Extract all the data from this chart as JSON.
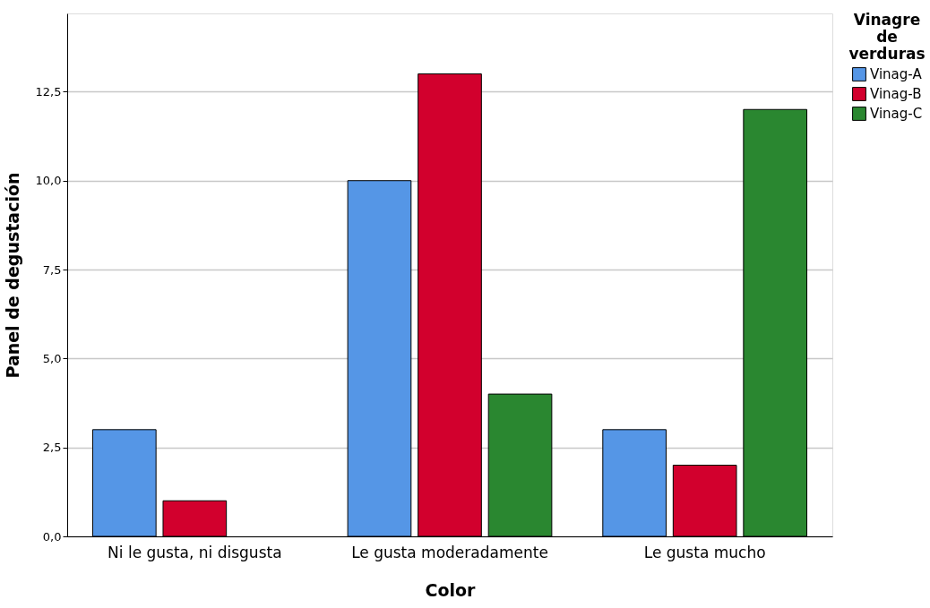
{
  "chart_data": {
    "type": "bar",
    "xlabel": "Color",
    "ylabel": "Panel de degustación",
    "legend_title": "Vinagre de verduras",
    "categories": [
      "Ni le gusta, ni disgusta",
      "Le gusta moderadamente",
      "Le gusta mucho"
    ],
    "series": [
      {
        "name": "Vinag-A",
        "color": "#5596e6",
        "values": [
          3,
          10,
          3
        ]
      },
      {
        "name": "Vinag-B",
        "color": "#d2002d",
        "values": [
          1,
          13,
          2
        ]
      },
      {
        "name": "Vinag-C",
        "color": "#2a8730",
        "values": [
          null,
          4,
          12
        ]
      }
    ],
    "ylim": [
      0,
      14.7
    ],
    "yticks": [
      {
        "value": 0,
        "label": "0,0"
      },
      {
        "value": 2.5,
        "label": "2,5"
      },
      {
        "value": 5,
        "label": "5,0"
      },
      {
        "value": 7.5,
        "label": "7,5"
      },
      {
        "value": 10,
        "label": "10,0"
      },
      {
        "value": 12.5,
        "label": "12,5"
      }
    ],
    "grid": "y",
    "legend": "top right"
  }
}
